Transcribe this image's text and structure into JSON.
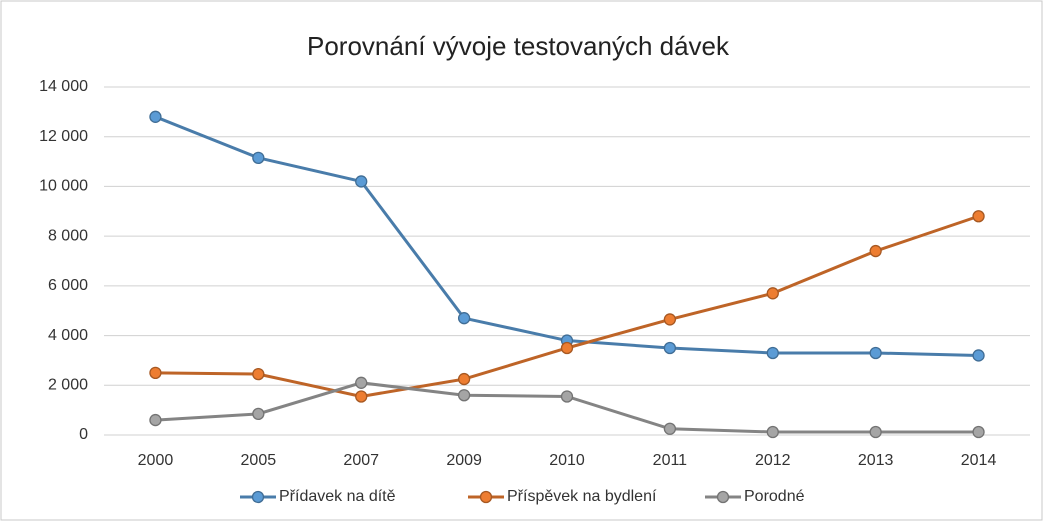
{
  "chart_data": {
    "type": "line",
    "title": "Porovnání vývoje testovaných dávek",
    "categories": [
      "2000",
      "2005",
      "2007",
      "2009",
      "2010",
      "2011",
      "2012",
      "2013",
      "2014"
    ],
    "series": [
      {
        "name": "Přídavek na dítě",
        "color": "#5b9bd5",
        "values": [
          12800,
          11150,
          10200,
          4700,
          3800,
          3500,
          3300,
          3300,
          3200
        ]
      },
      {
        "name": "Příspěvek na bydlení",
        "color": "#ed7d31",
        "values": [
          2500,
          2450,
          1550,
          2250,
          3500,
          4650,
          5700,
          7400,
          8800
        ]
      },
      {
        "name": "Porodné",
        "color": "#a5a5a5",
        "values": [
          600,
          850,
          2100,
          1600,
          1550,
          250,
          120,
          120,
          120
        ]
      }
    ],
    "ylim": [
      0,
      14000
    ],
    "yticks": [
      0,
      {
        "value": 2000,
        "label": "2 000"
      },
      {
        "value": 4000,
        "label": "4 000"
      },
      {
        "value": 6000,
        "label": "6 000"
      },
      {
        "value": 8000,
        "label": "8 000"
      },
      {
        "value": 10000,
        "label": "10 000"
      },
      {
        "value": 12000,
        "label": "12 000"
      },
      {
        "value": 14000,
        "label": "14 000"
      }
    ],
    "grid": true,
    "legend": "bottom"
  }
}
